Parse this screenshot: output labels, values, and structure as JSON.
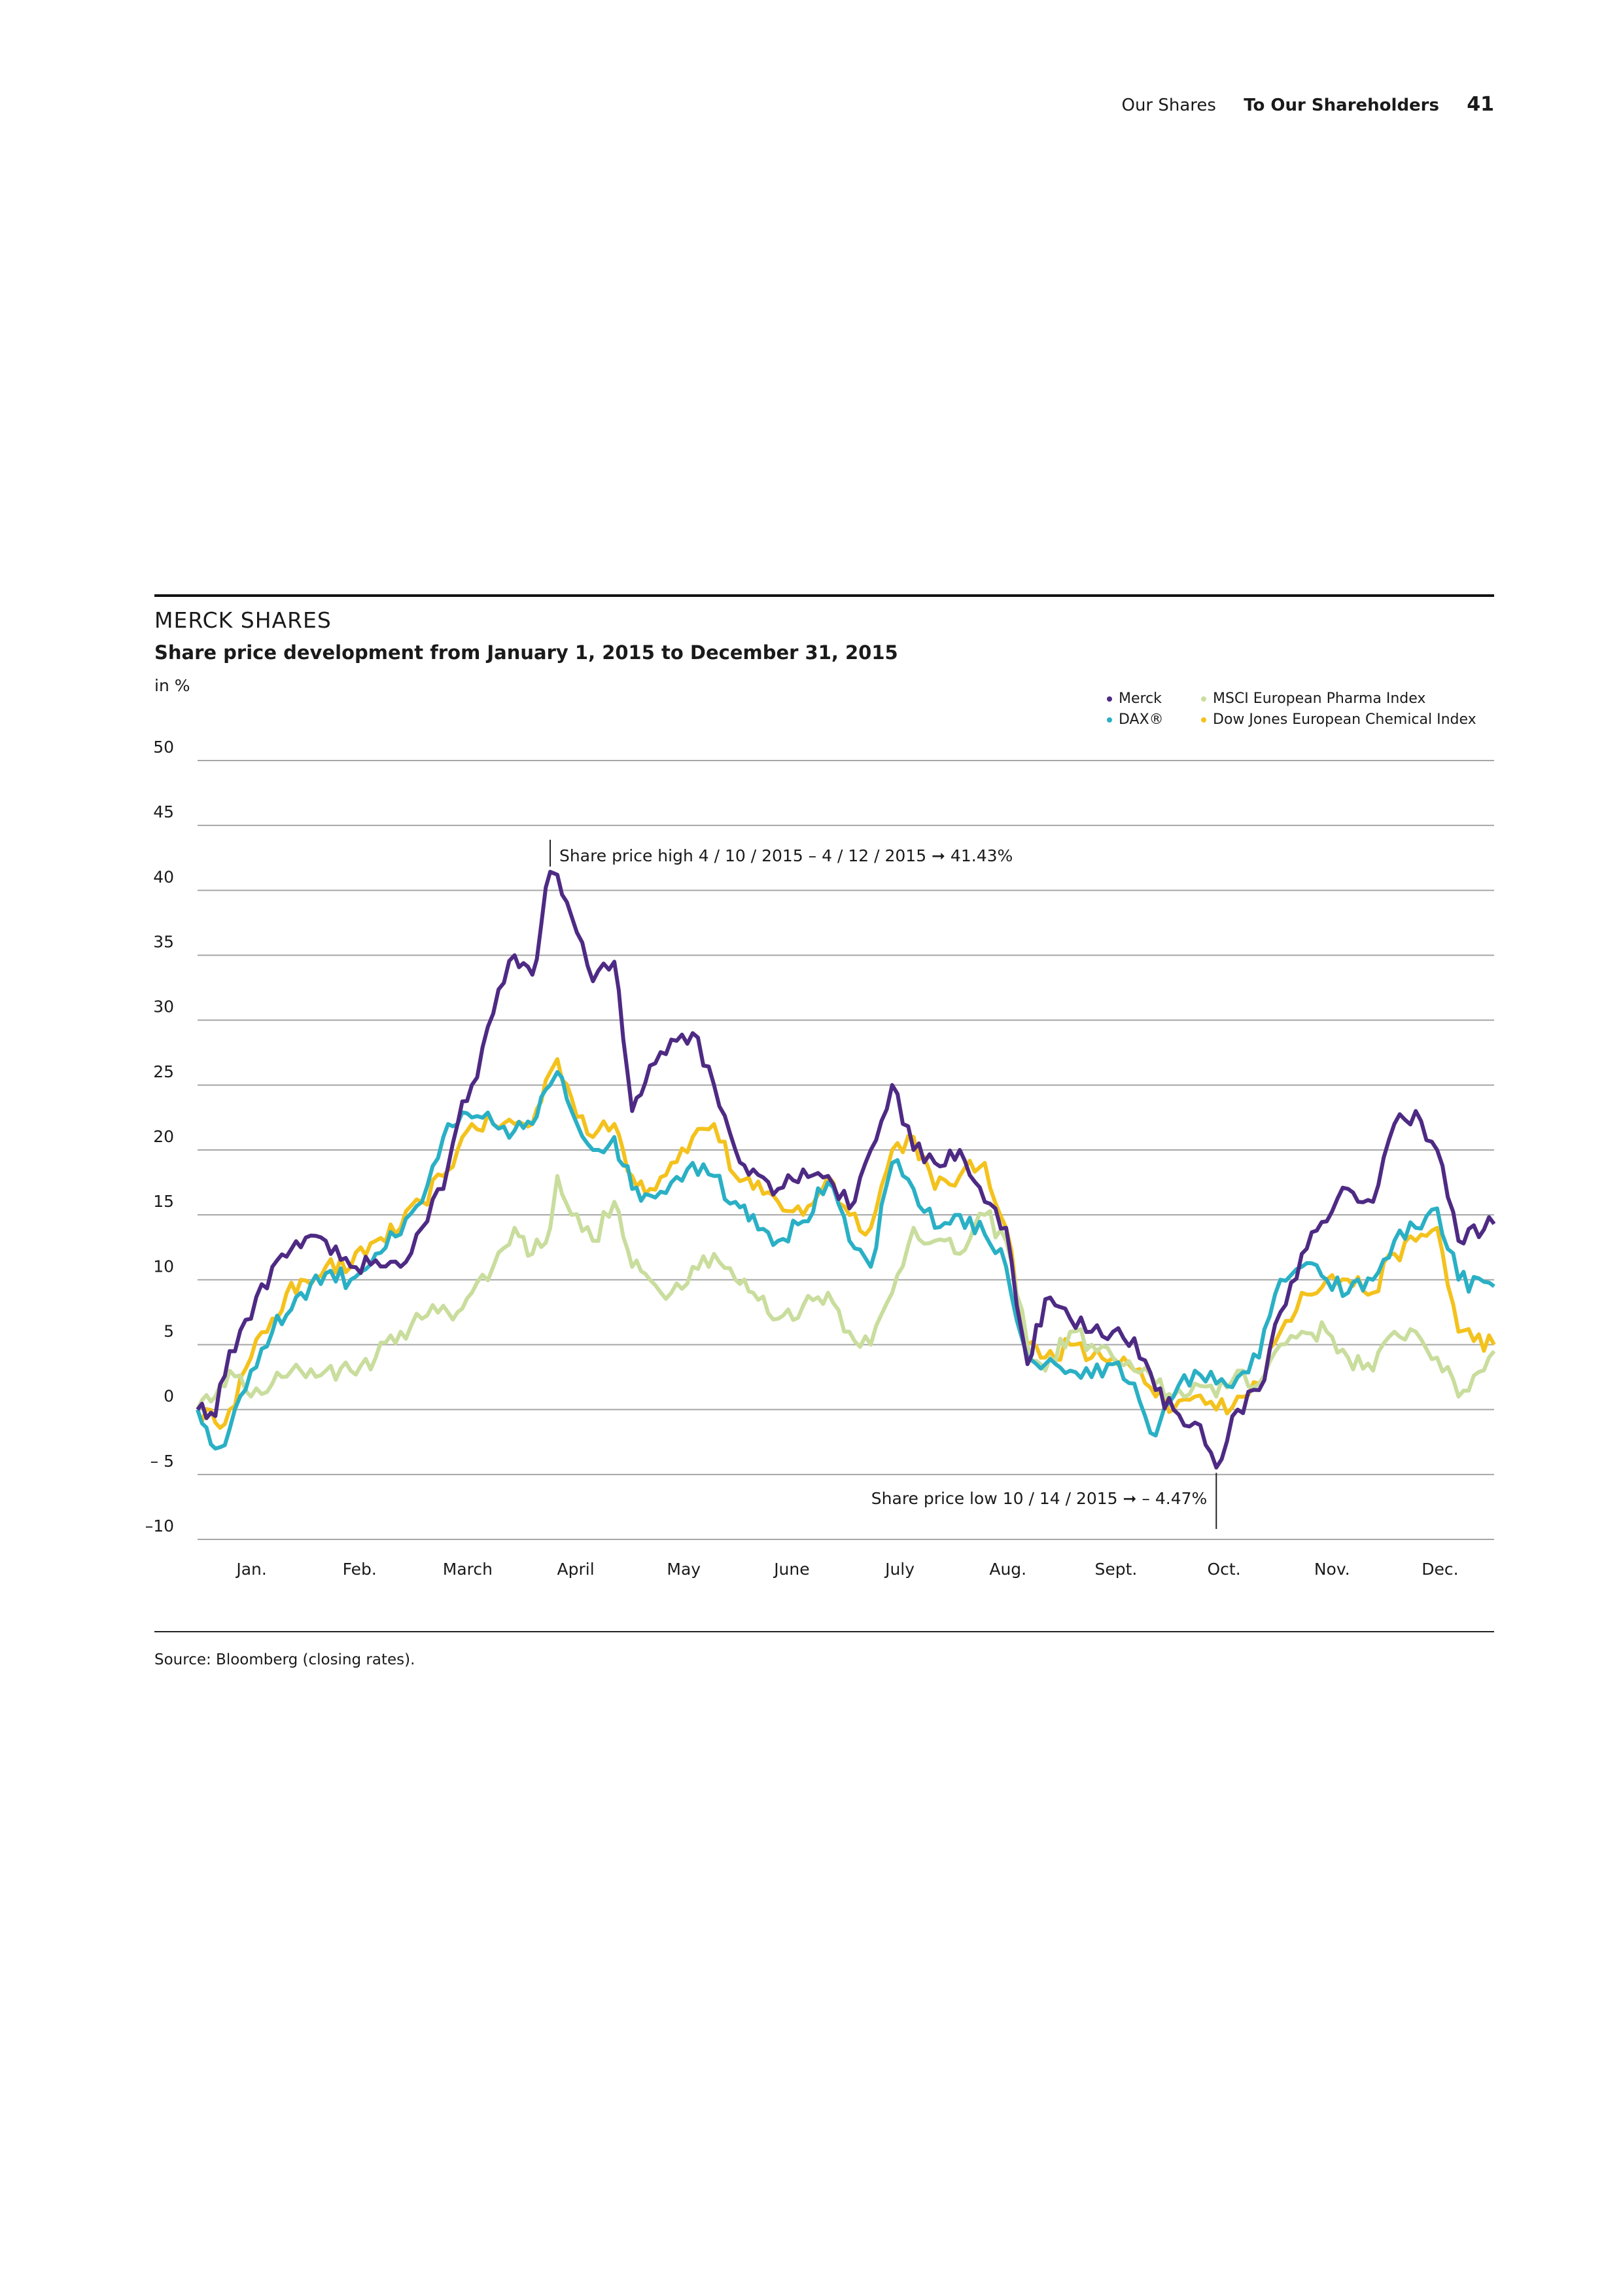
{
  "header": {
    "section": "Our Shares",
    "chapter": "To Our Shareholders",
    "page_number": "41"
  },
  "source_note": "Source: Bloomberg (closing rates).",
  "chart_data": {
    "type": "line",
    "title": "MERCK SHARES",
    "subtitle": "Share price development from January 1, 2015 to December 31, 2015",
    "ylabel": "in %",
    "ylim": [
      -10,
      50
    ],
    "yticks": [
      50,
      45,
      40,
      35,
      30,
      25,
      20,
      15,
      10,
      5,
      0,
      -5,
      -10
    ],
    "ytick_labels": [
      "50",
      "45",
      "40",
      "35",
      "30",
      "25",
      "20",
      "15",
      "10",
      "5",
      "0",
      "– 5",
      "–10"
    ],
    "xlim": [
      "2015-01-01",
      "2015-12-31"
    ],
    "x_categories": [
      "Jan.",
      "Feb.",
      "March",
      "April",
      "May",
      "June",
      "July",
      "Aug.",
      "Sept.",
      "Oct.",
      "Nov.",
      "Dec."
    ],
    "grid": true,
    "legend_position": "top-right",
    "series": [
      {
        "name": "Merck",
        "color": "#4e2a84",
        "x": [
          "2015-01-01",
          "2015-01-06",
          "2015-01-10",
          "2015-01-16",
          "2015-01-22",
          "2015-01-30",
          "2015-02-06",
          "2015-02-13",
          "2015-02-20",
          "2015-02-27",
          "2015-03-05",
          "2015-03-11",
          "2015-03-15",
          "2015-03-19",
          "2015-03-25",
          "2015-03-31",
          "2015-04-05",
          "2015-04-10",
          "2015-04-12",
          "2015-04-16",
          "2015-04-22",
          "2015-04-28",
          "2015-05-03",
          "2015-05-08",
          "2015-05-14",
          "2015-05-20",
          "2015-05-26",
          "2015-06-01",
          "2015-06-06",
          "2015-06-13",
          "2015-06-20",
          "2015-06-27",
          "2015-07-03",
          "2015-07-09",
          "2015-07-15",
          "2015-07-21",
          "2015-07-27",
          "2015-08-03",
          "2015-08-10",
          "2015-08-16",
          "2015-08-22",
          "2015-08-27",
          "2015-09-03",
          "2015-09-09",
          "2015-09-15",
          "2015-09-21",
          "2015-09-27",
          "2015-10-02",
          "2015-10-08",
          "2015-10-14",
          "2015-10-20",
          "2015-10-26",
          "2015-11-01",
          "2015-11-07",
          "2015-11-14",
          "2015-11-20",
          "2015-11-27",
          "2015-12-03",
          "2015-12-09",
          "2015-12-15",
          "2015-12-21",
          "2015-12-31"
        ],
        "y": [
          0,
          -0.5,
          4.5,
          7,
          11,
          12.5,
          13,
          11,
          11.5,
          11,
          14,
          17,
          22,
          25,
          30.5,
          35,
          33.5,
          41.43,
          41.2,
          38,
          33,
          34.5,
          23,
          26.5,
          28.5,
          29,
          25,
          20,
          18.5,
          17,
          18.5,
          18,
          15.5,
          20,
          25,
          20,
          19,
          20,
          16,
          14,
          3.5,
          8.5,
          7,
          6,
          6,
          5.5,
          1.5,
          0,
          -1,
          -4.47,
          0,
          1.5,
          7.5,
          12,
          14.5,
          17,
          16,
          22,
          23,
          20,
          13,
          14.3
        ]
      },
      {
        "name": "DAX®",
        "color": "#2ab0c5",
        "x": [
          "2015-01-01",
          "2015-01-06",
          "2015-01-10",
          "2015-01-16",
          "2015-01-22",
          "2015-01-30",
          "2015-02-06",
          "2015-02-13",
          "2015-02-20",
          "2015-02-27",
          "2015-03-05",
          "2015-03-11",
          "2015-03-15",
          "2015-03-19",
          "2015-03-25",
          "2015-03-31",
          "2015-04-05",
          "2015-04-10",
          "2015-04-12",
          "2015-04-16",
          "2015-04-22",
          "2015-04-28",
          "2015-05-03",
          "2015-05-08",
          "2015-05-14",
          "2015-05-20",
          "2015-05-26",
          "2015-06-01",
          "2015-06-06",
          "2015-06-13",
          "2015-06-20",
          "2015-06-27",
          "2015-07-03",
          "2015-07-09",
          "2015-07-15",
          "2015-07-21",
          "2015-07-27",
          "2015-08-03",
          "2015-08-10",
          "2015-08-16",
          "2015-08-22",
          "2015-08-27",
          "2015-09-03",
          "2015-09-09",
          "2015-09-15",
          "2015-09-21",
          "2015-09-27",
          "2015-10-02",
          "2015-10-08",
          "2015-10-14",
          "2015-10-20",
          "2015-10-26",
          "2015-11-01",
          "2015-11-07",
          "2015-11-14",
          "2015-11-20",
          "2015-11-27",
          "2015-12-03",
          "2015-12-09",
          "2015-12-15",
          "2015-12-21",
          "2015-12-31"
        ],
        "y": [
          0,
          -3,
          -1.5,
          3,
          6,
          9,
          10.5,
          10,
          12,
          13.5,
          16,
          21,
          22,
          22.5,
          22,
          21.5,
          22,
          25,
          26,
          23,
          20,
          21,
          17,
          16.5,
          17.5,
          19,
          18,
          16,
          15,
          13,
          14.5,
          17.5,
          13,
          11,
          19,
          17,
          14,
          15,
          13.5,
          11,
          4,
          3.5,
          3,
          2.5,
          3.5,
          2,
          -2,
          1,
          3,
          2,
          2.5,
          4,
          10,
          11,
          10,
          9,
          10,
          13,
          14,
          15.5,
          10,
          9.5
        ]
      },
      {
        "name": "MSCI European Pharma Index",
        "color": "#c9dd9d",
        "x": [
          "2015-01-01",
          "2015-01-06",
          "2015-01-10",
          "2015-01-16",
          "2015-01-22",
          "2015-01-30",
          "2015-02-06",
          "2015-02-13",
          "2015-02-20",
          "2015-02-27",
          "2015-03-05",
          "2015-03-11",
          "2015-03-15",
          "2015-03-19",
          "2015-03-25",
          "2015-03-31",
          "2015-04-05",
          "2015-04-10",
          "2015-04-12",
          "2015-04-16",
          "2015-04-22",
          "2015-04-28",
          "2015-05-03",
          "2015-05-08",
          "2015-05-14",
          "2015-05-20",
          "2015-05-26",
          "2015-06-01",
          "2015-06-06",
          "2015-06-13",
          "2015-06-20",
          "2015-06-27",
          "2015-07-03",
          "2015-07-09",
          "2015-07-15",
          "2015-07-21",
          "2015-07-27",
          "2015-08-03",
          "2015-08-10",
          "2015-08-16",
          "2015-08-22",
          "2015-08-27",
          "2015-09-03",
          "2015-09-09",
          "2015-09-15",
          "2015-09-21",
          "2015-09-27",
          "2015-10-02",
          "2015-10-08",
          "2015-10-14",
          "2015-10-20",
          "2015-10-26",
          "2015-11-01",
          "2015-11-07",
          "2015-11-14",
          "2015-11-20",
          "2015-11-27",
          "2015-12-03",
          "2015-12-09",
          "2015-12-15",
          "2015-12-21",
          "2015-12-31"
        ],
        "y": [
          0,
          1,
          3,
          1,
          2,
          3,
          3,
          3,
          4,
          6,
          7,
          8,
          7.5,
          9,
          11,
          14,
          12,
          14,
          18,
          15,
          13,
          16,
          11,
          10,
          9,
          11,
          12,
          10,
          9,
          7,
          8,
          9,
          6,
          5,
          9,
          14,
          13,
          12,
          15,
          13,
          5,
          3,
          6,
          5,
          4,
          3,
          2,
          1,
          2,
          1,
          3,
          2,
          5,
          6,
          6,
          4,
          3,
          6,
          6,
          4,
          1,
          4.5
        ]
      },
      {
        "name": "Dow Jones European Chemical Index",
        "color": "#f4c21d",
        "x": [
          "2015-01-01",
          "2015-01-06",
          "2015-01-10",
          "2015-01-16",
          "2015-01-22",
          "2015-01-30",
          "2015-02-06",
          "2015-02-13",
          "2015-02-20",
          "2015-02-27",
          "2015-03-05",
          "2015-03-11",
          "2015-03-15",
          "2015-03-19",
          "2015-03-25",
          "2015-03-31",
          "2015-04-05",
          "2015-04-10",
          "2015-04-12",
          "2015-04-16",
          "2015-04-22",
          "2015-04-28",
          "2015-05-03",
          "2015-05-08",
          "2015-05-14",
          "2015-05-20",
          "2015-05-26",
          "2015-06-01",
          "2015-06-06",
          "2015-06-13",
          "2015-06-20",
          "2015-06-27",
          "2015-07-03",
          "2015-07-09",
          "2015-07-15",
          "2015-07-21",
          "2015-07-27",
          "2015-08-03",
          "2015-08-10",
          "2015-08-16",
          "2015-08-22",
          "2015-08-27",
          "2015-09-03",
          "2015-09-09",
          "2015-09-15",
          "2015-09-21",
          "2015-09-27",
          "2015-10-02",
          "2015-10-08",
          "2015-10-14",
          "2015-10-20",
          "2015-10-26",
          "2015-11-01",
          "2015-11-07",
          "2015-11-14",
          "2015-11-20",
          "2015-11-27",
          "2015-12-03",
          "2015-12-09",
          "2015-12-15",
          "2015-12-21",
          "2015-12-31"
        ],
        "y": [
          0,
          -1,
          0,
          4,
          7,
          10,
          11,
          11,
          13,
          14,
          16,
          18,
          20,
          22,
          22,
          22,
          22,
          26,
          27,
          24,
          21,
          22,
          18,
          17,
          19,
          21,
          22,
          18,
          17,
          16,
          15,
          18,
          15,
          14,
          20,
          21,
          17,
          18,
          19,
          14,
          5,
          4,
          5,
          4,
          4,
          3,
          1,
          0,
          1,
          0,
          1,
          2,
          6,
          9,
          10,
          10,
          9,
          12,
          13,
          14,
          6,
          5
        ]
      }
    ],
    "annotations": [
      {
        "text": "Share price high 4 / 10 / 2015 – 4 / 12 / 2015 ➞ 41.43%",
        "x": "2015-04-10",
        "y": 41.43
      },
      {
        "text": "Share price low 10 / 14 / 2015 ➞ – 4.47%",
        "x": "2015-10-14",
        "y": -4.47
      }
    ]
  }
}
